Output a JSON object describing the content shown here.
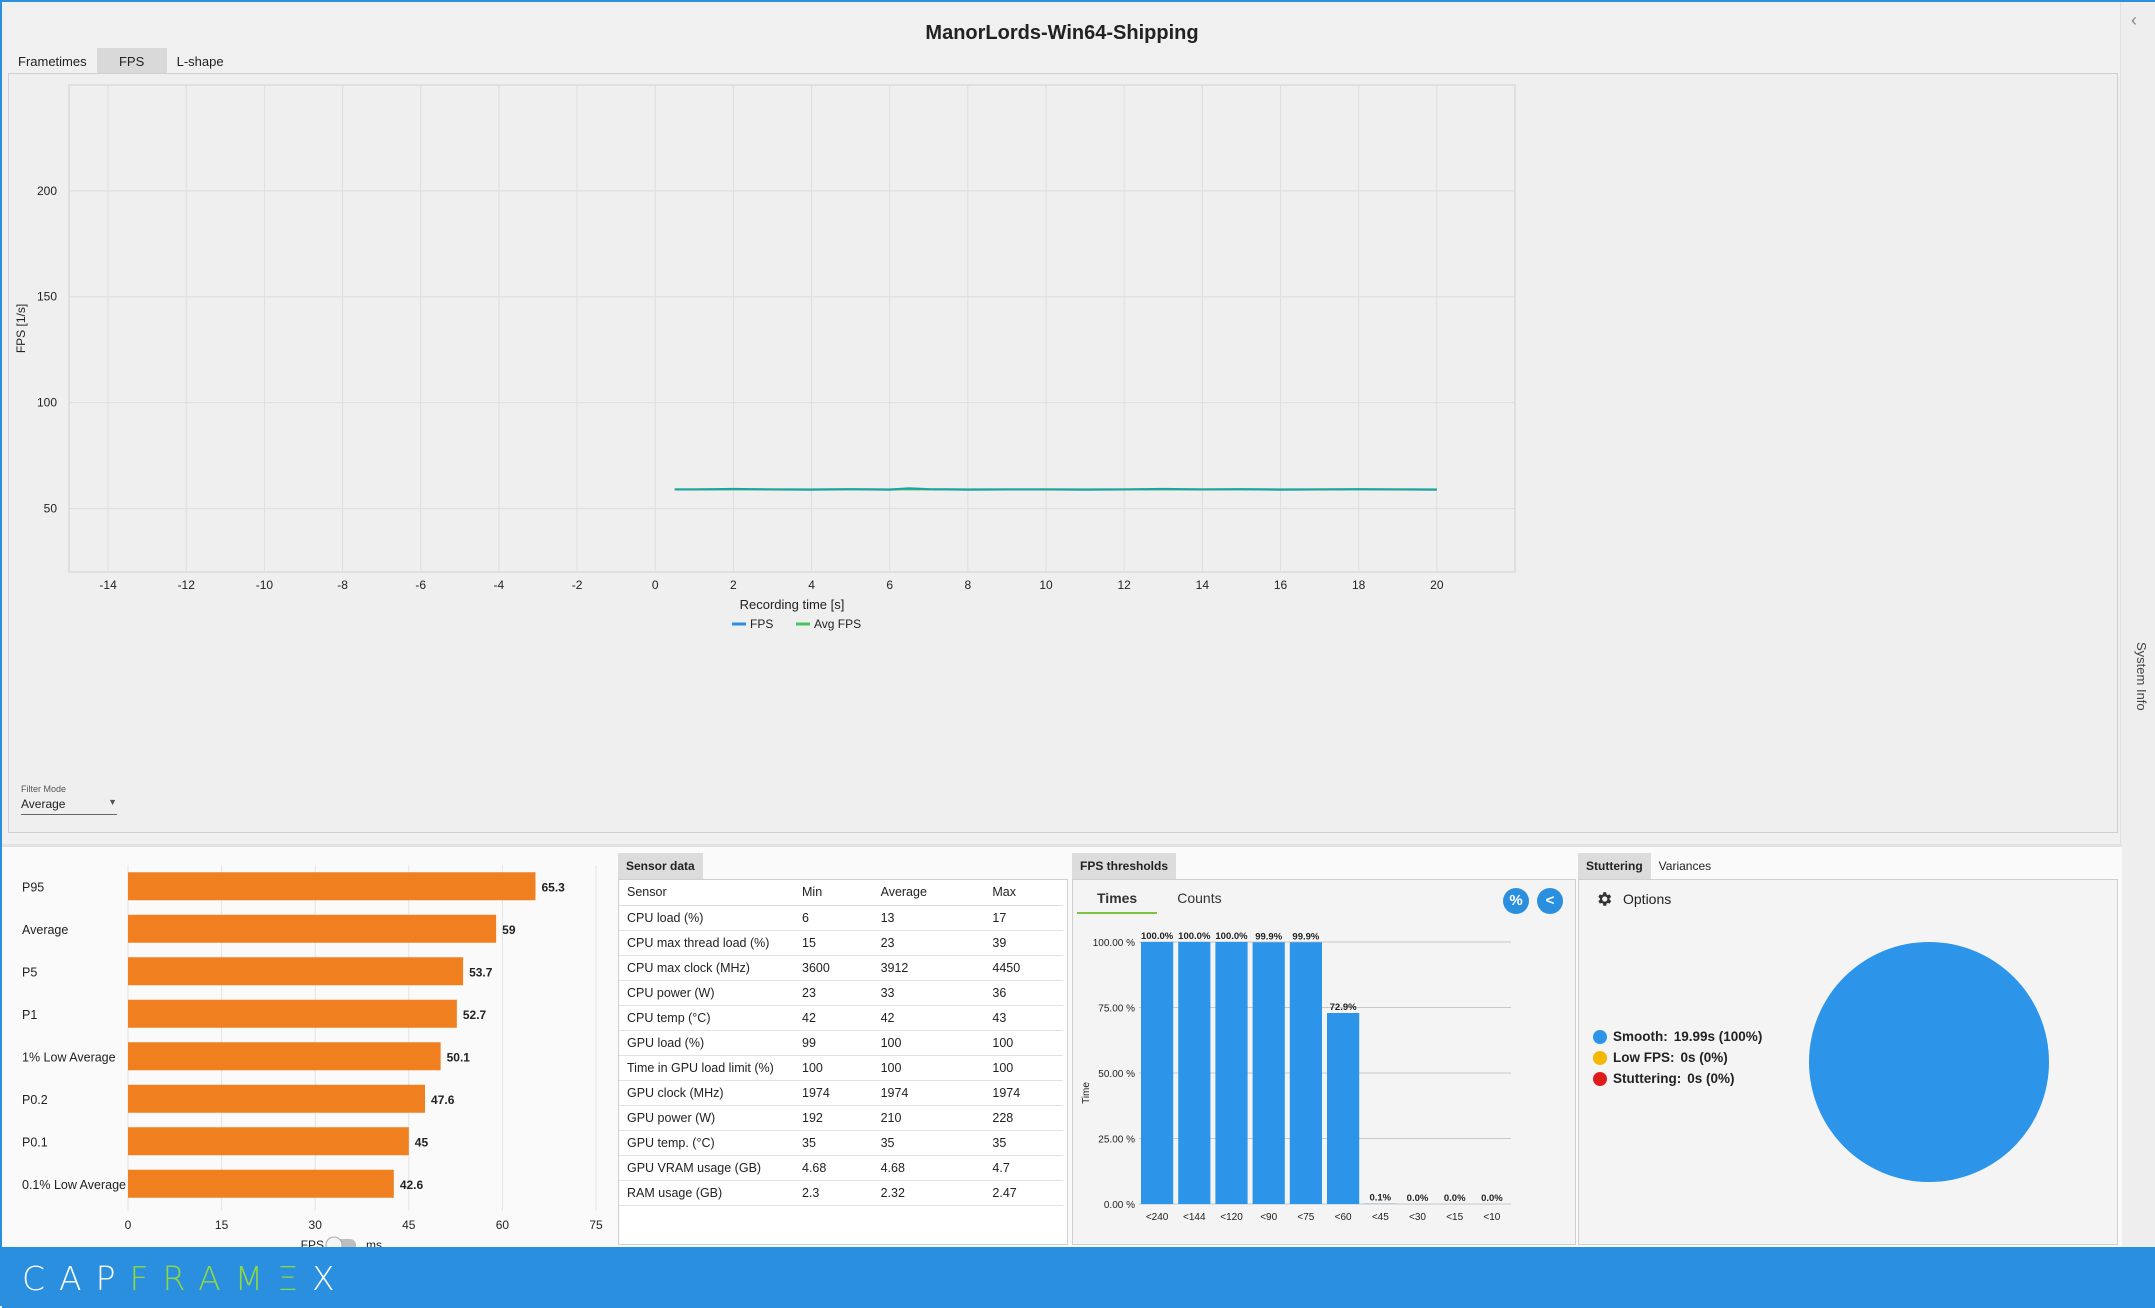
{
  "title": "ManorLords-Win64-Shipping",
  "tabs": [
    {
      "label": "Frametimes"
    },
    {
      "label": "FPS"
    },
    {
      "label": "L-shape"
    }
  ],
  "system_info_label": "System Info",
  "filter": {
    "label": "Filter Mode",
    "value": "Average"
  },
  "chart_data": [
    {
      "type": "line",
      "title": "",
      "xlabel": "Recording time [s]",
      "ylabel": "FPS [1/s]",
      "xlim": [
        -15,
        22
      ],
      "ylim": [
        20,
        250
      ],
      "xticks": [
        -14,
        -12,
        -10,
        -8,
        -6,
        -4,
        -2,
        0,
        2,
        4,
        6,
        8,
        10,
        12,
        14,
        16,
        18,
        20
      ],
      "yticks": [
        50,
        100,
        150,
        200
      ],
      "legend": [
        "FPS",
        "Avg FPS"
      ],
      "series": [
        {
          "name": "FPS",
          "color": "#2b8fe0",
          "x": [
            0.5,
            1,
            2,
            3,
            4,
            5,
            6,
            6.5,
            7,
            8,
            9,
            10,
            11,
            12,
            13,
            14,
            15,
            16,
            17,
            18,
            19,
            20
          ],
          "y": [
            59,
            59,
            59.2,
            59,
            58.9,
            59.1,
            58.9,
            59.5,
            59.1,
            58.9,
            59,
            59,
            58.9,
            59,
            59.2,
            59,
            59.1,
            58.9,
            59,
            59.1,
            59,
            58.9
          ]
        },
        {
          "name": "Avg FPS",
          "color": "#4cc35a",
          "x": [
            0.5,
            20
          ],
          "y": [
            59,
            59
          ]
        }
      ]
    },
    {
      "type": "bar",
      "orientation": "horizontal",
      "categories": [
        "P95",
        "Average",
        "P5",
        "P1",
        "1% Low Average",
        "P0.2",
        "P0.1",
        "0.1% Low Average"
      ],
      "values": [
        65.3,
        59,
        53.7,
        52.7,
        50.1,
        47.6,
        45,
        42.6
      ],
      "xlim": [
        0,
        75
      ],
      "xticks": [
        0,
        15,
        30,
        45,
        60,
        75
      ],
      "color": "#f07f1f"
    },
    {
      "type": "bar",
      "title": "FPS thresholds",
      "categories": [
        "<240",
        "<144",
        "<120",
        "<90",
        "<75",
        "<60",
        "<45",
        "<30",
        "<15",
        "<10"
      ],
      "values": [
        100.0,
        100.0,
        100.0,
        99.9,
        99.9,
        72.9,
        0.1,
        0.0,
        0.0,
        0.0
      ],
      "labels": [
        "100.0%",
        "100.0%",
        "100.0%",
        "99.9%",
        "99.9%",
        "72.9%",
        "0.1%",
        "0.0%",
        "0.0%",
        "0.0%"
      ],
      "ylabel": "Time",
      "ylim": [
        0,
        100
      ],
      "yticks": [
        "0.00 %",
        "25.00 %",
        "50.00 %",
        "75.00 %",
        "100.00 %"
      ],
      "color": "#2c95ea"
    },
    {
      "type": "pie",
      "values": [
        100,
        0,
        0
      ],
      "labels": [
        "Smooth",
        "Low FPS",
        "Stuttering"
      ],
      "colors": [
        "#2c95ea",
        "#f5b800",
        "#e01b1b"
      ]
    }
  ],
  "fps_toggle": {
    "left": "FPS",
    "right": "ms"
  },
  "sensor": {
    "tab": "Sensor data",
    "headers": [
      "Sensor",
      "Min",
      "Average",
      "Max"
    ],
    "rows": [
      [
        "CPU load (%)",
        "6",
        "13",
        "17"
      ],
      [
        "CPU max thread load (%)",
        "15",
        "23",
        "39"
      ],
      [
        "CPU max clock (MHz)",
        "3600",
        "3912",
        "4450"
      ],
      [
        "CPU power (W)",
        "23",
        "33",
        "36"
      ],
      [
        "CPU temp (°C)",
        "42",
        "42",
        "43"
      ],
      [
        "GPU load (%)",
        "99",
        "100",
        "100"
      ],
      [
        "Time in GPU load limit (%)",
        "100",
        "100",
        "100"
      ],
      [
        "GPU clock (MHz)",
        "1974",
        "1974",
        "1974"
      ],
      [
        "GPU power (W)",
        "192",
        "210",
        "228"
      ],
      [
        "GPU temp. (°C)",
        "35",
        "35",
        "35"
      ],
      [
        "GPU VRAM usage (GB)",
        "4.68",
        "4.68",
        "4.7"
      ],
      [
        "RAM usage (GB)",
        "2.3",
        "2.32",
        "2.47"
      ]
    ]
  },
  "thresholds": {
    "tab": "FPS thresholds",
    "subtabs": [
      "Times",
      "Counts"
    ],
    "btn_percent": "%",
    "btn_back": "<"
  },
  "stuttering": {
    "tabs": [
      "Stuttering",
      "Variances"
    ],
    "options": "Options",
    "legend": [
      {
        "label": "Smooth:",
        "value": "19.99s (100%)",
        "color": "#2c95ea"
      },
      {
        "label": "Low FPS:",
        "value": "0s (0%)",
        "color": "#f5b800"
      },
      {
        "label": "Stuttering:",
        "value": "0s (0%)",
        "color": "#e01b1b"
      }
    ]
  },
  "footer": {
    "logo_a": "CAP",
    "logo_b": "FRAM",
    "logo_c": "Ξ",
    "logo_d": "X"
  }
}
